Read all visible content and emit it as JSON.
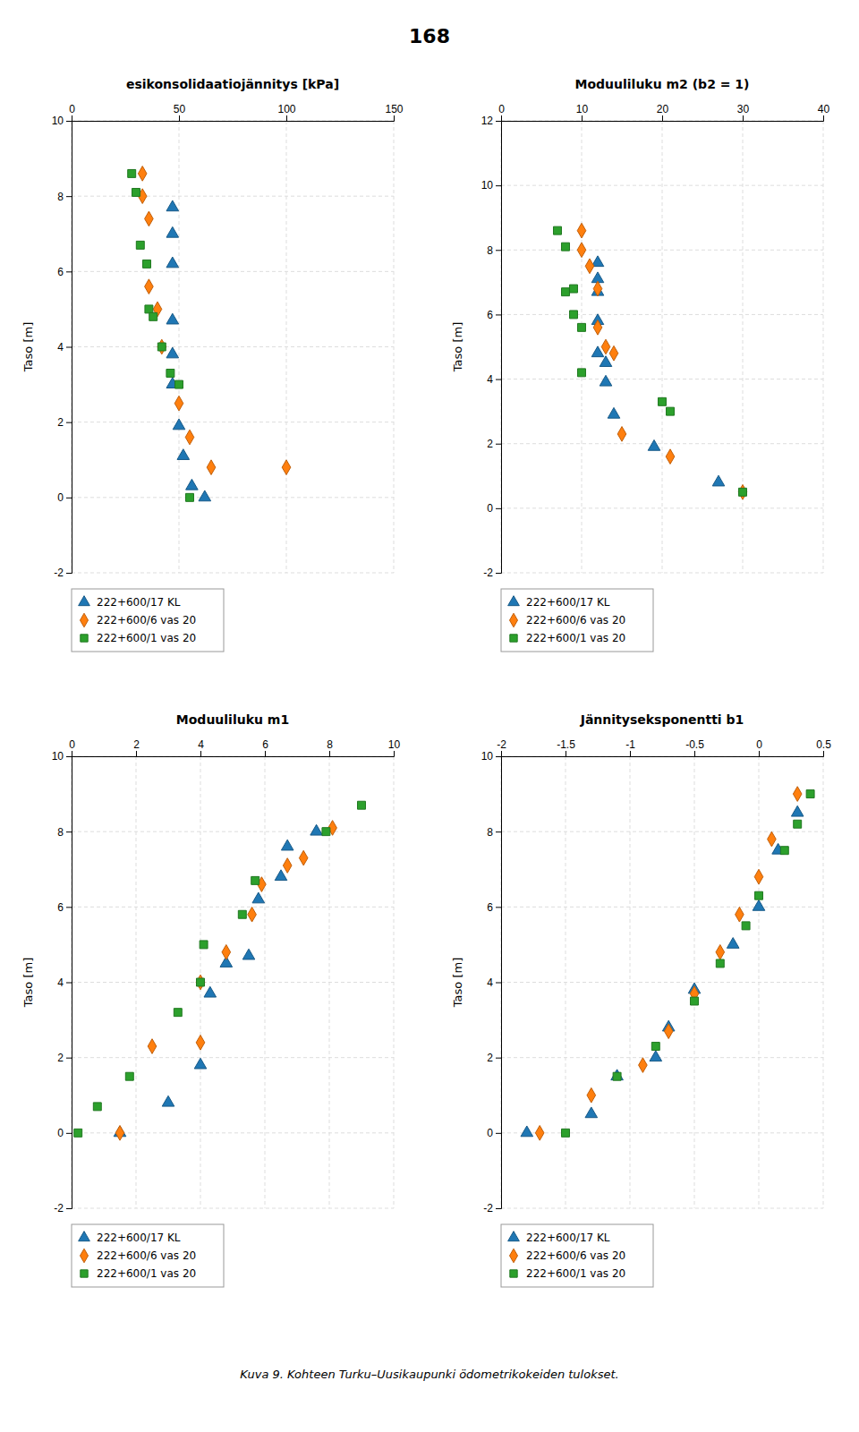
{
  "page_number": "168",
  "caption": "Kuva 9. Kohteen Turku–Uusikaupunki ödometrikokeiden tulokset.",
  "chart_data": [
    {
      "type": "scatter",
      "title": "esikonsolidaatiojännitys [kPa]",
      "ylabel": "Taso [m]",
      "xlim": [
        0,
        150
      ],
      "xticks": [
        0,
        50,
        100,
        150
      ],
      "ylim": [
        -2,
        10
      ],
      "yticks": [
        -2,
        0,
        2,
        4,
        6,
        8,
        10
      ],
      "grid": true,
      "legend": "below",
      "series": [
        {
          "name": "222+600/17 KL",
          "marker": "triangle",
          "x": [
            47,
            47,
            47,
            47,
            47,
            47,
            50,
            52,
            56,
            62
          ],
          "values": [
            7.7,
            7.0,
            6.2,
            4.7,
            3.8,
            3.0,
            1.9,
            1.1,
            0.3,
            0.0
          ]
        },
        {
          "name": "222+600/6 vas 20",
          "marker": "diamond",
          "x": [
            33,
            33,
            36,
            36,
            40,
            42,
            50,
            55,
            65,
            100
          ],
          "values": [
            8.6,
            8.0,
            7.4,
            5.6,
            5.0,
            4.0,
            2.5,
            1.6,
            0.8,
            0.8
          ]
        },
        {
          "name": "222+600/1 vas 20",
          "marker": "square",
          "x": [
            28,
            30,
            32,
            35,
            36,
            38,
            42,
            46,
            50,
            55
          ],
          "values": [
            8.6,
            8.1,
            6.7,
            6.2,
            5.0,
            4.8,
            4.0,
            3.3,
            3.0,
            0.0
          ]
        }
      ]
    },
    {
      "type": "scatter",
      "title": "Moduuliluku m2 (b2 = 1)",
      "ylabel": "Taso [m]",
      "xlim": [
        0,
        40
      ],
      "xticks": [
        0,
        10,
        20,
        30,
        40
      ],
      "ylim": [
        -2,
        12
      ],
      "yticks": [
        -2,
        0,
        2,
        4,
        6,
        8,
        10,
        12
      ],
      "grid": true,
      "legend": "below",
      "series": [
        {
          "name": "222+600/17 KL",
          "marker": "triangle",
          "x": [
            12,
            12,
            12,
            12,
            12,
            13,
            13,
            14,
            19,
            27
          ],
          "values": [
            7.6,
            7.1,
            6.7,
            5.8,
            4.8,
            4.5,
            3.9,
            2.9,
            1.9,
            0.8
          ]
        },
        {
          "name": "222+600/6 vas 20",
          "marker": "diamond",
          "x": [
            10,
            10,
            11,
            12,
            12,
            13,
            14,
            15,
            21,
            30
          ],
          "values": [
            8.6,
            8.0,
            7.5,
            6.8,
            5.6,
            5.0,
            4.8,
            2.3,
            1.6,
            0.5
          ]
        },
        {
          "name": "222+600/1 vas 20",
          "marker": "square",
          "x": [
            7,
            8,
            8,
            9,
            9,
            10,
            10,
            20,
            21,
            30
          ],
          "values": [
            8.6,
            8.1,
            6.7,
            6.8,
            6.0,
            5.6,
            4.2,
            3.3,
            3.0,
            0.5
          ]
        }
      ]
    },
    {
      "type": "scatter",
      "title": "Moduuliluku m1",
      "ylabel": "Taso [m]",
      "xlim": [
        0,
        10
      ],
      "xticks": [
        0,
        2,
        4,
        6,
        8,
        10
      ],
      "ylim": [
        -2,
        10
      ],
      "yticks": [
        -2,
        0,
        2,
        4,
        6,
        8,
        10
      ],
      "grid": true,
      "legend": "below",
      "series": [
        {
          "name": "222+600/17 KL",
          "marker": "triangle",
          "x": [
            1.5,
            3.0,
            4.0,
            4.3,
            4.8,
            5.5,
            5.8,
            6.5,
            6.7,
            7.6
          ],
          "values": [
            0.0,
            0.8,
            1.8,
            3.7,
            4.5,
            4.7,
            6.2,
            6.8,
            7.6,
            8.0
          ]
        },
        {
          "name": "222+600/6 vas 20",
          "marker": "diamond",
          "x": [
            1.5,
            2.5,
            4.0,
            4.0,
            4.8,
            5.6,
            5.9,
            6.7,
            7.2,
            8.1
          ],
          "values": [
            0.0,
            2.3,
            2.4,
            4.0,
            4.8,
            5.8,
            6.6,
            7.1,
            7.3,
            8.1
          ]
        },
        {
          "name": "222+600/1 vas 20",
          "marker": "square",
          "x": [
            0.2,
            0.8,
            1.8,
            3.3,
            4.0,
            4.1,
            5.3,
            5.7,
            7.9,
            9.0
          ],
          "values": [
            0.0,
            0.7,
            1.5,
            3.2,
            4.0,
            5.0,
            5.8,
            6.7,
            8.0,
            8.7
          ]
        }
      ]
    },
    {
      "type": "scatter",
      "title": "Jännityseksponentti b1",
      "ylabel": "Taso [m]",
      "xlim": [
        -2,
        0.5
      ],
      "xticks": [
        -2,
        -1.5,
        -1,
        -0.5,
        0,
        0.5
      ],
      "ylim": [
        -2,
        10
      ],
      "yticks": [
        -2,
        0,
        2,
        4,
        6,
        8,
        10
      ],
      "grid": true,
      "legend": "below",
      "series": [
        {
          "name": "222+600/17 KL",
          "marker": "triangle",
          "x": [
            -1.8,
            -1.3,
            -1.1,
            -0.8,
            -0.7,
            -0.5,
            -0.2,
            0.0,
            0.15,
            0.3
          ],
          "values": [
            0.0,
            0.5,
            1.5,
            2.0,
            2.8,
            3.8,
            5.0,
            6.0,
            7.5,
            8.5
          ]
        },
        {
          "name": "222+600/6 vas 20",
          "marker": "diamond",
          "x": [
            -1.7,
            -1.3,
            -0.9,
            -0.7,
            -0.5,
            -0.3,
            -0.15,
            0.0,
            0.1,
            0.3
          ],
          "values": [
            0.0,
            1.0,
            1.8,
            2.7,
            3.7,
            4.8,
            5.8,
            6.8,
            7.8,
            9.0
          ]
        },
        {
          "name": "222+600/1 vas 20",
          "marker": "square",
          "x": [
            -1.5,
            -1.1,
            -0.8,
            -0.5,
            -0.3,
            -0.1,
            0.0,
            0.2,
            0.3,
            0.4
          ],
          "values": [
            0.0,
            1.5,
            2.3,
            3.5,
            4.5,
            5.5,
            6.3,
            7.5,
            8.2,
            9.0
          ]
        }
      ]
    }
  ]
}
